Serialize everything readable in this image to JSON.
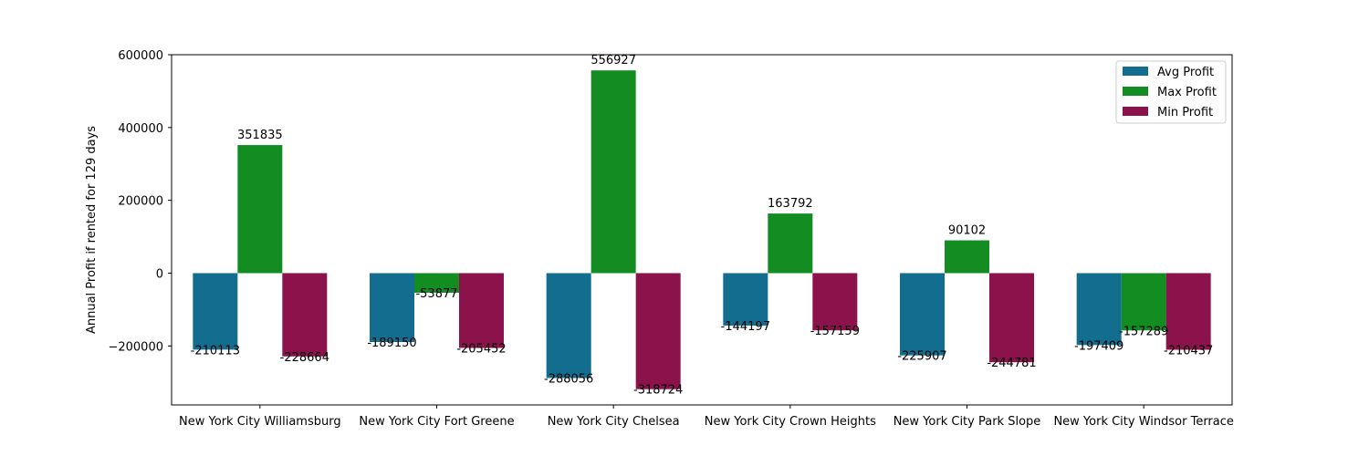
{
  "chart_data": {
    "type": "bar",
    "title": "",
    "xlabel": "",
    "ylabel": "Annual Profit if rented for 129 days",
    "categories": [
      "New York City Williamsburg",
      "New York City Fort Greene",
      "New York City Chelsea",
      "New York City Crown Heights",
      "New York City Park Slope",
      "New York City Windsor Terrace"
    ],
    "series": [
      {
        "name": "Avg Profit",
        "color": "#126d8e",
        "values": [
          -210113,
          -189150,
          -288056,
          -144197,
          -225907,
          -197409
        ]
      },
      {
        "name": "Max Profit",
        "color": "#138d22",
        "values": [
          351835,
          -53877,
          556927,
          163792,
          90102,
          -157289
        ]
      },
      {
        "name": "Min Profit",
        "color": "#8b124a",
        "values": [
          -228664,
          -205452,
          -318724,
          -157159,
          -244781,
          -210437
        ]
      }
    ],
    "ylim": [
      -362000,
      600000
    ],
    "yticks": [
      -200000,
      0,
      200000,
      400000,
      600000
    ],
    "ytick_labels": [
      "−200000",
      "0",
      "200000",
      "400000",
      "600000"
    ],
    "legend_position": "top-right",
    "grid": false
  }
}
